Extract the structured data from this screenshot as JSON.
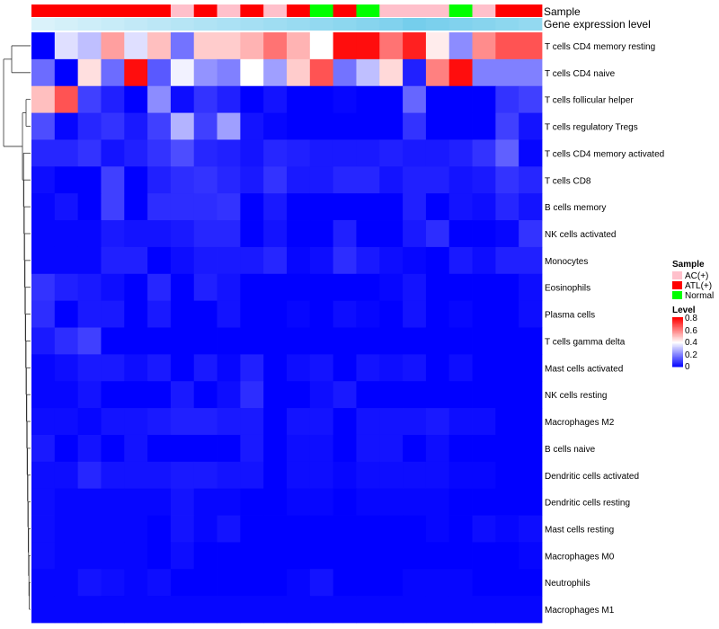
{
  "chart_data": {
    "type": "heatmap",
    "title": "",
    "annotation_tracks": [
      {
        "name": "Sample"
      },
      {
        "name": "Gene expression level"
      }
    ],
    "rows": [
      "T cells CD4 memory resting",
      "T cells CD4 naive",
      "T cells follicular helper",
      "T cells regulatory  Tregs",
      "T cells CD4 memory activated",
      "T cells CD8",
      "B cells memory",
      "NK cells activated",
      "Monocytes",
      "Eosinophils",
      "Plasma cells",
      "T cells gamma delta",
      "Mast cells activated",
      "NK cells resting",
      "Macrophages M2",
      "B cells naive",
      "Dendritic cells activated",
      "Dendritic cells resting",
      "Mast cells resting",
      "Macrophages M0",
      "Neutrophils",
      "Macrophages M1"
    ],
    "sample_groups": [
      "ATL(+)",
      "ATL(+)",
      "ATL(+)",
      "ATL(+)",
      "ATL(+)",
      "ATL(+)",
      "AC(+)",
      "ATL(+)",
      "AC(+)",
      "ATL(+)",
      "AC(+)",
      "ATL(+)",
      "Normal",
      "ATL(+)",
      "Normal",
      "AC(+)",
      "AC(+)",
      "AC(+)",
      "Normal",
      "AC(+)",
      "ATL(+)",
      "ATL(+)"
    ],
    "expression_levels": [
      0.1,
      0.15,
      0.2,
      0.25,
      0.3,
      0.35,
      0.4,
      0.45,
      0.5,
      0.55,
      0.6,
      0.65,
      0.7,
      0.75,
      0.8,
      0.85,
      0.95,
      0.9,
      0.85,
      0.8,
      0.75,
      0.7
    ],
    "values": [
      [
        0.0,
        0.35,
        0.3,
        0.55,
        0.35,
        0.5,
        0.18,
        0.48,
        0.48,
        0.52,
        0.62,
        0.52,
        0.4,
        0.78,
        0.78,
        0.62,
        0.75,
        0.43,
        0.22,
        0.58,
        0.67,
        0.67
      ],
      [
        0.17,
        0.0,
        0.45,
        0.17,
        0.78,
        0.14,
        0.38,
        0.23,
        0.2,
        0.4,
        0.25,
        0.48,
        0.67,
        0.18,
        0.3,
        0.46,
        0.05,
        0.6,
        0.78,
        0.2,
        0.2,
        0.2
      ],
      [
        0.5,
        0.67,
        0.1,
        0.05,
        0.0,
        0.22,
        0.02,
        0.08,
        0.05,
        0.0,
        0.03,
        0.0,
        0.0,
        0.01,
        0.0,
        0.0,
        0.16,
        0.0,
        0.0,
        0.0,
        0.08,
        0.1
      ],
      [
        0.12,
        0.01,
        0.06,
        0.08,
        0.04,
        0.1,
        0.28,
        0.1,
        0.25,
        0.03,
        0.01,
        0.0,
        0.0,
        0.0,
        0.0,
        0.0,
        0.08,
        0.0,
        0.0,
        0.0,
        0.1,
        0.03
      ],
      [
        0.06,
        0.06,
        0.08,
        0.03,
        0.05,
        0.08,
        0.12,
        0.06,
        0.05,
        0.03,
        0.06,
        0.05,
        0.04,
        0.04,
        0.04,
        0.05,
        0.04,
        0.04,
        0.05,
        0.08,
        0.15,
        0.01
      ],
      [
        0.02,
        0.0,
        0.0,
        0.1,
        0.0,
        0.05,
        0.07,
        0.08,
        0.06,
        0.04,
        0.08,
        0.04,
        0.04,
        0.06,
        0.06,
        0.03,
        0.05,
        0.05,
        0.03,
        0.04,
        0.08,
        0.06
      ],
      [
        0.01,
        0.03,
        0.0,
        0.1,
        0.0,
        0.07,
        0.07,
        0.07,
        0.08,
        0.0,
        0.04,
        0.0,
        0.0,
        0.0,
        0.0,
        0.0,
        0.05,
        0.0,
        0.03,
        0.02,
        0.06,
        0.03
      ],
      [
        0.01,
        0.01,
        0.01,
        0.04,
        0.03,
        0.03,
        0.04,
        0.06,
        0.06,
        0.0,
        0.03,
        0.0,
        0.0,
        0.05,
        0.0,
        0.0,
        0.04,
        0.07,
        0.0,
        0.0,
        0.01,
        0.08
      ],
      [
        0.01,
        0.01,
        0.01,
        0.05,
        0.05,
        0.0,
        0.02,
        0.04,
        0.04,
        0.04,
        0.06,
        0.01,
        0.02,
        0.07,
        0.04,
        0.02,
        0.01,
        0.0,
        0.04,
        0.02,
        0.05,
        0.05
      ],
      [
        0.08,
        0.05,
        0.04,
        0.02,
        0.0,
        0.06,
        0.0,
        0.05,
        0.03,
        0.0,
        0.0,
        0.0,
        0.0,
        0.0,
        0.0,
        0.01,
        0.03,
        0.0,
        0.0,
        0.0,
        0.0,
        0.02
      ],
      [
        0.07,
        0.0,
        0.04,
        0.04,
        0.0,
        0.04,
        0.0,
        0.0,
        0.03,
        0.0,
        0.0,
        0.01,
        0.0,
        0.02,
        0.01,
        0.0,
        0.03,
        0.0,
        0.01,
        0.0,
        0.0,
        0.02
      ],
      [
        0.04,
        0.07,
        0.1,
        0.0,
        0.0,
        0.0,
        0.0,
        0.0,
        0.0,
        0.0,
        0.0,
        0.0,
        0.0,
        0.0,
        0.0,
        0.0,
        0.0,
        0.0,
        0.0,
        0.0,
        0.0,
        0.0
      ],
      [
        0.01,
        0.02,
        0.04,
        0.04,
        0.02,
        0.04,
        0.0,
        0.04,
        0.01,
        0.05,
        0.0,
        0.02,
        0.03,
        0.0,
        0.03,
        0.02,
        0.03,
        0.0,
        0.02,
        0.0,
        0.0,
        0.0
      ],
      [
        0.01,
        0.01,
        0.03,
        0.0,
        0.0,
        0.0,
        0.04,
        0.0,
        0.02,
        0.07,
        0.0,
        0.0,
        0.02,
        0.04,
        0.0,
        0.0,
        0.0,
        0.0,
        0.0,
        0.0,
        0.0,
        0.0
      ],
      [
        0.02,
        0.02,
        0.01,
        0.03,
        0.03,
        0.04,
        0.05,
        0.05,
        0.04,
        0.04,
        0.0,
        0.03,
        0.03,
        0.0,
        0.03,
        0.03,
        0.03,
        0.04,
        0.02,
        0.02,
        0.0,
        0.0
      ],
      [
        0.04,
        0.0,
        0.03,
        0.0,
        0.03,
        0.0,
        0.0,
        0.0,
        0.0,
        0.04,
        0.0,
        0.02,
        0.02,
        0.0,
        0.03,
        0.03,
        0.0,
        0.02,
        0.0,
        0.0,
        0.0,
        0.0
      ],
      [
        0.02,
        0.02,
        0.06,
        0.03,
        0.03,
        0.03,
        0.04,
        0.04,
        0.03,
        0.03,
        0.0,
        0.02,
        0.02,
        0.01,
        0.02,
        0.02,
        0.02,
        0.02,
        0.01,
        0.01,
        0.0,
        0.0
      ],
      [
        0.02,
        0.01,
        0.01,
        0.01,
        0.01,
        0.01,
        0.03,
        0.01,
        0.01,
        0.0,
        0.0,
        0.01,
        0.01,
        0.0,
        0.01,
        0.01,
        0.01,
        0.01,
        0.0,
        0.0,
        0.0,
        0.0
      ],
      [
        0.02,
        0.01,
        0.01,
        0.01,
        0.01,
        0.0,
        0.03,
        0.01,
        0.03,
        0.0,
        0.0,
        0.0,
        0.0,
        0.0,
        0.0,
        0.0,
        0.0,
        0.01,
        0.0,
        0.02,
        0.01,
        0.02
      ],
      [
        0.02,
        0.01,
        0.01,
        0.01,
        0.01,
        0.0,
        0.02,
        0.0,
        0.0,
        0.0,
        0.0,
        0.0,
        0.0,
        0.0,
        0.0,
        0.0,
        0.0,
        0.0,
        0.0,
        0.0,
        0.0,
        0.01
      ],
      [
        0.01,
        0.01,
        0.03,
        0.02,
        0.01,
        0.02,
        0.0,
        0.0,
        0.0,
        0.0,
        0.0,
        0.01,
        0.03,
        0.0,
        0.0,
        0.0,
        0.01,
        0.01,
        0.01,
        0.0,
        0.0,
        0.0
      ],
      [
        0.01,
        0.01,
        0.01,
        0.01,
        0.01,
        0.01,
        0.01,
        0.01,
        0.01,
        0.01,
        0.01,
        0.01,
        0.01,
        0.01,
        0.01,
        0.01,
        0.01,
        0.01,
        0.01,
        0.01,
        0.01,
        0.01
      ]
    ],
    "legend": {
      "sample": {
        "title": "Sample",
        "entries": [
          {
            "label": "AC(+)",
            "color": "#FFC0CB"
          },
          {
            "label": "ATL(+)",
            "color": "#FF0000"
          },
          {
            "label": "Normal",
            "color": "#00FF00"
          }
        ]
      },
      "level": {
        "title": "Level",
        "ticks": [
          0.8,
          0.6,
          0.4,
          0.2,
          0
        ],
        "tick_labels": [
          "0.8",
          "0.6",
          "0.4",
          "0.2",
          "0"
        ],
        "range": [
          0,
          0.8
        ]
      }
    },
    "colors": {
      "low": "#0000FF",
      "mid": "#FFFFFF",
      "high": "#FF0000",
      "expression_low": "#E6F6FC",
      "expression_high": "#6FCCEB",
      "dendrogram": "#333333"
    }
  }
}
